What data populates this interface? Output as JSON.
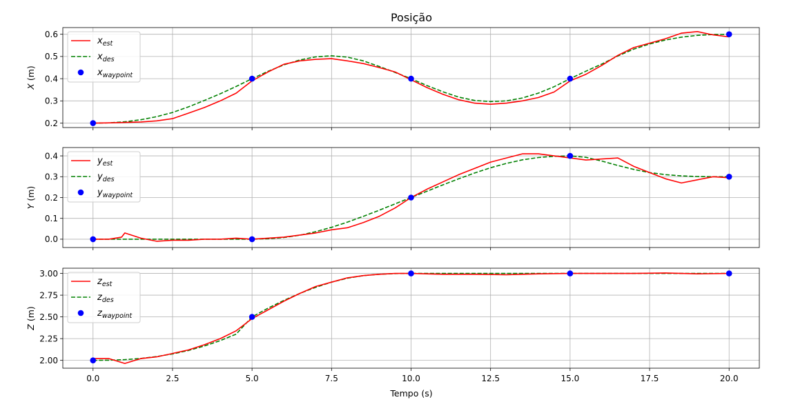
{
  "chart_data": {
    "type": "line",
    "title": "Posição",
    "xlabel": "Tempo (s)",
    "xlim": [
      -0.95,
      20.95
    ],
    "xticks": [
      0.0,
      2.5,
      5.0,
      7.5,
      10.0,
      12.5,
      15.0,
      17.5,
      20.0
    ],
    "xtick_labels": [
      "0.0",
      "2.5",
      "5.0",
      "7.5",
      "10.0",
      "12.5",
      "15.0",
      "17.5",
      "20.0"
    ],
    "grid": true,
    "legend_position": "upper-left",
    "colors": {
      "est": "#ff0000",
      "des": "#008000",
      "waypoint": "#0000ff",
      "grid": "#b0b0b0"
    },
    "subplots": [
      {
        "ylabel_var": "X",
        "ylabel_unit": " (m)",
        "ylim": [
          0.18,
          0.63
        ],
        "yticks": [
          0.2,
          0.3,
          0.4,
          0.5,
          0.6
        ],
        "ytick_labels": [
          "0.2",
          "0.3",
          "0.4",
          "0.5",
          "0.6"
        ],
        "legend": [
          {
            "base": "x",
            "sub": "est"
          },
          {
            "base": "x",
            "sub": "des"
          },
          {
            "base": "x",
            "sub": "waypoint"
          }
        ],
        "waypoints": {
          "x": [
            0,
            5,
            10,
            15,
            20
          ],
          "y": [
            0.2,
            0.4,
            0.4,
            0.4,
            0.6
          ]
        },
        "est": {
          "x": [
            0,
            0.5,
            1,
            1.5,
            2,
            2.5,
            3,
            3.5,
            4,
            4.5,
            5,
            5.5,
            6,
            6.5,
            7,
            7.5,
            8,
            8.5,
            9,
            9.5,
            10,
            10.5,
            11,
            11.5,
            12,
            12.5,
            13,
            13.5,
            14,
            14.5,
            15,
            15.5,
            16,
            16.5,
            17,
            17.5,
            18,
            18.5,
            19,
            19.5,
            20
          ],
          "y": [
            0.2,
            0.201,
            0.203,
            0.205,
            0.21,
            0.22,
            0.245,
            0.27,
            0.3,
            0.335,
            0.39,
            0.43,
            0.465,
            0.48,
            0.487,
            0.49,
            0.48,
            0.468,
            0.45,
            0.43,
            0.395,
            0.36,
            0.33,
            0.305,
            0.29,
            0.285,
            0.29,
            0.3,
            0.315,
            0.34,
            0.39,
            0.42,
            0.46,
            0.505,
            0.54,
            0.56,
            0.58,
            0.605,
            0.612,
            0.597,
            0.588
          ]
        },
        "des": {
          "x": [
            0,
            0.5,
            1,
            1.5,
            2,
            2.5,
            3,
            3.5,
            4,
            4.5,
            5,
            5.5,
            6,
            6.5,
            7,
            7.5,
            8,
            8.5,
            9,
            9.5,
            10,
            10.5,
            11,
            11.5,
            12,
            12.5,
            13,
            13.5,
            14,
            14.5,
            15,
            15.5,
            16,
            16.5,
            17,
            17.5,
            18,
            18.5,
            19,
            19.5,
            20
          ],
          "y": [
            0.2,
            0.201,
            0.206,
            0.215,
            0.229,
            0.248,
            0.273,
            0.302,
            0.332,
            0.365,
            0.4,
            0.433,
            0.462,
            0.484,
            0.498,
            0.503,
            0.497,
            0.48,
            0.455,
            0.428,
            0.4,
            0.369,
            0.341,
            0.317,
            0.302,
            0.297,
            0.3,
            0.313,
            0.335,
            0.364,
            0.4,
            0.434,
            0.466,
            0.502,
            0.533,
            0.556,
            0.574,
            0.587,
            0.595,
            0.599,
            0.6
          ]
        }
      },
      {
        "ylabel_var": "Y",
        "ylabel_unit": " (m)",
        "ylim": [
          -0.04,
          0.44
        ],
        "yticks": [
          0.0,
          0.1,
          0.2,
          0.3,
          0.4
        ],
        "ytick_labels": [
          "0.0",
          "0.1",
          "0.2",
          "0.3",
          "0.4"
        ],
        "legend": [
          {
            "base": "y",
            "sub": "est"
          },
          {
            "base": "y",
            "sub": "des"
          },
          {
            "base": "y",
            "sub": "waypoint"
          }
        ],
        "waypoints": {
          "x": [
            0,
            5,
            10,
            15,
            20
          ],
          "y": [
            0.0,
            0.0,
            0.2,
            0.4,
            0.3
          ]
        },
        "est": {
          "x": [
            0,
            0.5,
            0.9,
            1,
            1.2,
            1.5,
            2,
            2.5,
            3,
            3.5,
            4,
            4.5,
            5,
            5.5,
            6,
            6.5,
            7,
            7.5,
            8,
            8.5,
            9,
            9.5,
            10,
            10.5,
            11,
            11.5,
            12,
            12.5,
            13,
            13.5,
            14,
            14.5,
            15,
            15.5,
            16,
            16.5,
            17,
            17.5,
            18,
            18.5,
            19,
            19.5,
            20
          ],
          "y": [
            0.0,
            0.0,
            0.01,
            0.03,
            0.02,
            0.005,
            -0.01,
            -0.005,
            -0.005,
            0.0,
            0.0,
            0.005,
            0.0,
            0.005,
            0.01,
            0.02,
            0.03,
            0.045,
            0.055,
            0.08,
            0.11,
            0.15,
            0.2,
            0.24,
            0.275,
            0.31,
            0.34,
            0.37,
            0.39,
            0.41,
            0.41,
            0.4,
            0.39,
            0.38,
            0.385,
            0.39,
            0.35,
            0.32,
            0.29,
            0.27,
            0.285,
            0.3,
            0.295
          ]
        },
        "des": {
          "x": [
            0,
            0.5,
            1,
            1.5,
            2,
            2.5,
            3,
            3.5,
            4,
            4.5,
            5,
            5.5,
            6,
            6.5,
            7,
            7.5,
            8,
            8.5,
            9,
            9.5,
            10,
            10.5,
            11,
            11.5,
            12,
            12.5,
            13,
            13.5,
            14,
            14.5,
            15,
            15.5,
            16,
            16.5,
            17,
            17.5,
            18,
            18.5,
            19,
            19.5,
            20
          ],
          "y": [
            0.0,
            0.0,
            0.0,
            0.0,
            0.0,
            0.0,
            0.0,
            0.0,
            0.0,
            0.0,
            0.0,
            0.002,
            0.008,
            0.019,
            0.036,
            0.057,
            0.082,
            0.11,
            0.139,
            0.17,
            0.2,
            0.23,
            0.261,
            0.29,
            0.318,
            0.343,
            0.364,
            0.381,
            0.392,
            0.398,
            0.4,
            0.393,
            0.375,
            0.354,
            0.335,
            0.32,
            0.31,
            0.304,
            0.301,
            0.3,
            0.3
          ]
        }
      },
      {
        "ylabel_var": "Z",
        "ylabel_unit": " (m)",
        "ylim": [
          1.91,
          3.06
        ],
        "yticks": [
          2.0,
          2.25,
          2.5,
          2.75,
          3.0
        ],
        "ytick_labels": [
          "2.00",
          "2.25",
          "2.50",
          "2.75",
          "3.00"
        ],
        "legend": [
          {
            "base": "z",
            "sub": "est"
          },
          {
            "base": "z",
            "sub": "des"
          },
          {
            "base": "z",
            "sub": "waypoint"
          }
        ],
        "waypoints": {
          "x": [
            0,
            5,
            10,
            15,
            20
          ],
          "y": [
            2.0,
            2.5,
            3.0,
            3.0,
            3.0
          ]
        },
        "est": {
          "x": [
            0,
            0.5,
            1,
            1.5,
            2,
            2.5,
            3,
            3.5,
            4,
            4.5,
            5,
            5.5,
            6,
            6.5,
            7,
            7.5,
            8,
            8.5,
            9,
            9.5,
            10,
            11,
            12,
            13,
            14,
            15,
            16,
            17,
            18,
            19,
            20
          ],
          "y": [
            2.02,
            2.02,
            1.965,
            2.02,
            2.04,
            2.08,
            2.12,
            2.18,
            2.25,
            2.34,
            2.48,
            2.58,
            2.68,
            2.77,
            2.85,
            2.9,
            2.95,
            2.975,
            2.99,
            3.0,
            3.0,
            2.99,
            2.99,
            2.985,
            2.995,
            3.0,
            3.0,
            3.0,
            3.005,
            2.995,
            3.0
          ]
        },
        "des": {
          "x": [
            0,
            0.5,
            1,
            1.5,
            2,
            2.5,
            3,
            3.5,
            4,
            4.5,
            5,
            5.5,
            6,
            6.5,
            7,
            7.5,
            8,
            8.5,
            9,
            9.5,
            10,
            11,
            12,
            13,
            14,
            15,
            16,
            17,
            18,
            19,
            20
          ],
          "y": [
            2.0,
            2.002,
            2.008,
            2.022,
            2.044,
            2.074,
            2.114,
            2.165,
            2.227,
            2.302,
            2.5,
            2.6,
            2.69,
            2.77,
            2.84,
            2.9,
            2.945,
            2.975,
            2.99,
            2.998,
            3.0,
            3.0,
            3.0,
            3.0,
            3.0,
            3.0,
            3.0,
            3.0,
            3.0,
            3.0,
            3.0
          ]
        }
      }
    ]
  }
}
